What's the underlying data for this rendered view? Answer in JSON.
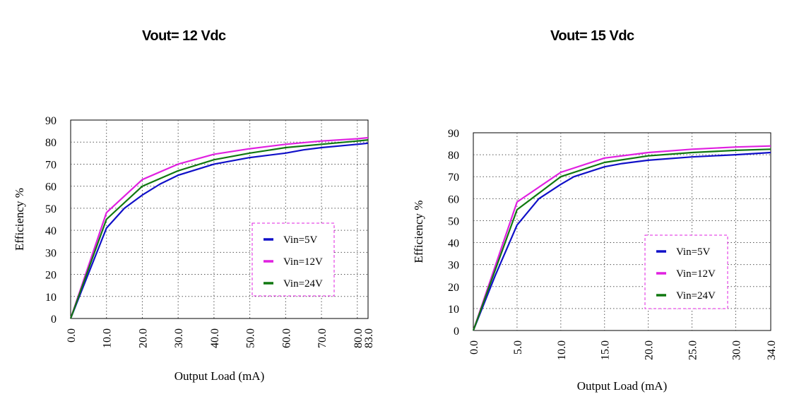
{
  "chart_data": [
    {
      "type": "line",
      "title": "Vout= 12 Vdc",
      "xlabel": "Output Load (mA)",
      "ylabel": "Efficiency %",
      "xticks": [
        "0.0",
        "10.0",
        "20.0",
        "30.0",
        "40.0",
        "50.0",
        "60.0",
        "70.0",
        "80.0",
        "83.0"
      ],
      "yticks": [
        "0",
        "10",
        "20",
        "30",
        "40",
        "50",
        "60",
        "70",
        "80",
        "90"
      ],
      "xlim": [
        0,
        83
      ],
      "ylim": [
        0,
        90
      ],
      "grid": true,
      "legend_position": "right",
      "series": [
        {
          "name": "Vin=5V",
          "color": "#1010c8",
          "x": [
            0,
            10,
            15,
            20,
            25,
            30,
            40,
            50,
            60,
            65,
            70,
            80,
            83
          ],
          "y": [
            0,
            41,
            50,
            56,
            61,
            65,
            70,
            73,
            75,
            76.5,
            77.5,
            79,
            79.5
          ]
        },
        {
          "name": "Vin=12V",
          "color": "#e020e0",
          "x": [
            0,
            10,
            20,
            30,
            40,
            50,
            60,
            70,
            80,
            83
          ],
          "y": [
            0,
            48,
            63,
            70,
            74.5,
            77,
            79,
            80.5,
            81.5,
            82
          ]
        },
        {
          "name": "Vin=24V",
          "color": "#107810",
          "x": [
            0,
            10,
            20,
            30,
            40,
            50,
            60,
            70,
            80,
            83
          ],
          "y": [
            0,
            45,
            60,
            67,
            72,
            75,
            77.5,
            79,
            80.5,
            81
          ]
        }
      ]
    },
    {
      "type": "line",
      "title": "Vout= 15 Vdc",
      "xlabel": "Output Load (mA)",
      "ylabel": "Efficiency %",
      "xticks": [
        "0.0",
        "5.0",
        "10.0",
        "15.0",
        "20.0",
        "25.0",
        "30.0",
        "34.0"
      ],
      "yticks": [
        "0",
        "10",
        "20",
        "30",
        "40",
        "50",
        "60",
        "70",
        "80",
        "90"
      ],
      "xlim": [
        0,
        34
      ],
      "ylim": [
        0,
        90
      ],
      "grid": true,
      "legend_position": "center-right",
      "series": [
        {
          "name": "Vin=5V",
          "color": "#1010c8",
          "x": [
            0,
            2.5,
            5,
            7.5,
            10,
            11.5,
            15,
            17,
            20,
            25,
            30,
            34
          ],
          "y": [
            0,
            25,
            48,
            60,
            66.5,
            70,
            74.5,
            76,
            77.5,
            79,
            80,
            81
          ]
        },
        {
          "name": "Vin=12V",
          "color": "#e020e0",
          "x": [
            0,
            5,
            10,
            15,
            20,
            25,
            30,
            34
          ],
          "y": [
            0,
            58.5,
            72,
            78.5,
            81,
            82.5,
            83.5,
            84
          ]
        },
        {
          "name": "Vin=24V",
          "color": "#107810",
          "x": [
            0,
            5,
            10,
            15,
            20,
            25,
            30,
            34
          ],
          "y": [
            0,
            55,
            70,
            76.5,
            79.5,
            81,
            82,
            82.5
          ]
        }
      ]
    }
  ]
}
